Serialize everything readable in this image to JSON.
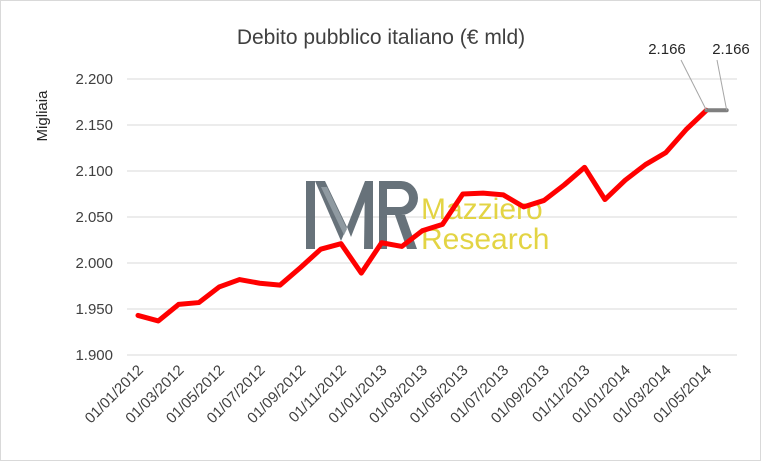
{
  "chart_data": {
    "type": "line",
    "title": "Debito pubblico italiano (€ mld)",
    "ylabel": "Migliaia",
    "xlabel": "",
    "ylim": [
      1900,
      2200
    ],
    "yticks": [
      {
        "value": 1900,
        "label": "1.900"
      },
      {
        "value": 1950,
        "label": "1.950"
      },
      {
        "value": 2000,
        "label": "2.000"
      },
      {
        "value": 2050,
        "label": "2.050"
      },
      {
        "value": 2100,
        "label": "2.100"
      },
      {
        "value": 2150,
        "label": "2.150"
      },
      {
        "value": 2200,
        "label": "2.200"
      }
    ],
    "grid": true,
    "legend": "none",
    "xticks": [
      "01/01/2012",
      "01/03/2012",
      "01/05/2012",
      "01/07/2012",
      "01/09/2012",
      "01/11/2012",
      "01/01/2013",
      "01/03/2013",
      "01/05/2013",
      "01/07/2013",
      "01/09/2013",
      "01/11/2013",
      "01/01/2014",
      "01/03/2014",
      "01/05/2014"
    ],
    "x": [
      "01/01/2012",
      "01/02/2012",
      "01/03/2012",
      "01/04/2012",
      "01/05/2012",
      "01/06/2012",
      "01/07/2012",
      "01/08/2012",
      "01/09/2012",
      "01/10/2012",
      "01/11/2012",
      "01/12/2012",
      "01/01/2013",
      "01/02/2013",
      "01/03/2013",
      "01/04/2013",
      "01/05/2013",
      "01/06/2013",
      "01/07/2013",
      "01/08/2013",
      "01/09/2013",
      "01/10/2013",
      "01/11/2013",
      "01/12/2013",
      "01/01/2014",
      "01/02/2014",
      "01/03/2014",
      "01/04/2014",
      "01/05/2014",
      "01/06/2014"
    ],
    "series": [
      {
        "color": "#ff0000",
        "values": [
          1943,
          1937,
          1955,
          1957,
          1974,
          1982,
          1978,
          1976,
          1995,
          2015,
          2021,
          1989,
          2022,
          2018,
          2035,
          2042,
          2075,
          2076,
          2074,
          2061,
          2068,
          2085,
          2104,
          2069,
          2090,
          2107,
          2120,
          2145,
          2166,
          null
        ]
      },
      {
        "color": "#7f7f7f",
        "values": [
          null,
          null,
          null,
          null,
          null,
          null,
          null,
          null,
          null,
          null,
          null,
          null,
          null,
          null,
          null,
          null,
          null,
          null,
          null,
          null,
          null,
          null,
          null,
          null,
          null,
          null,
          null,
          null,
          2166,
          2166
        ]
      }
    ],
    "annotations": [
      {
        "label": "2.166",
        "x": "01/05/2014",
        "value": 2166
      },
      {
        "label": "2.166",
        "x": "01/06/2014",
        "value": 2166
      }
    ],
    "watermark": {
      "logo": "MR",
      "line1": "Mazziero",
      "line2": "Research"
    },
    "colors": {
      "line": "#ff0000",
      "forecast": "#7f7f7f",
      "grid": "#d9d9d9",
      "watermark_brand": "#e2d23a",
      "watermark_logo": "#5f6b73"
    }
  }
}
